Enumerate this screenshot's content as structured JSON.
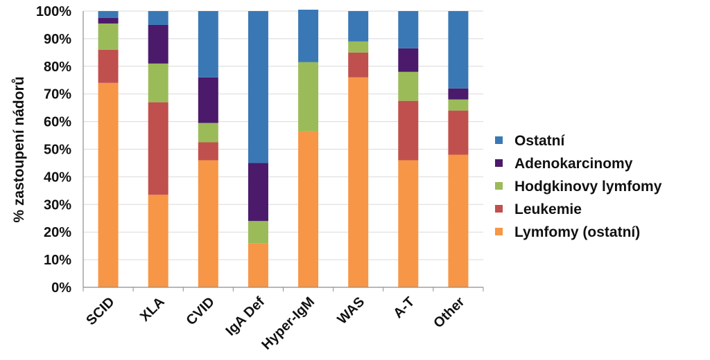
{
  "chart_data": {
    "type": "bar",
    "stacked": true,
    "ylabel": "% zastoupení nádorů",
    "xlabel": "",
    "ylim": [
      0,
      100
    ],
    "yticks": [
      "0%",
      "10%",
      "20%",
      "30%",
      "40%",
      "50%",
      "60%",
      "70%",
      "80%",
      "90%",
      "100%"
    ],
    "grid": true,
    "legend_position": "right",
    "categories": [
      "SCID",
      "XLA",
      "CVID",
      "IgA Def",
      "Hyper-IgM",
      "WAS",
      "A-T",
      "Other"
    ],
    "series": [
      {
        "name": "Lymfomy (ostatní)",
        "color": "#f79646",
        "values": [
          74,
          33.5,
          46,
          16,
          56.5,
          76,
          46,
          48
        ]
      },
      {
        "name": "Leukemie",
        "color": "#c0504d",
        "values": [
          12,
          33.5,
          6.5,
          0,
          0,
          9,
          21.5,
          16
        ]
      },
      {
        "name": "Hodgkinovy lymfomy",
        "color": "#9bbb59",
        "values": [
          9.5,
          14,
          7,
          8,
          25,
          4,
          10.5,
          4
        ]
      },
      {
        "name": "Adenokarcinomy",
        "color": "#4b1a6b",
        "values": [
          2,
          14,
          16.5,
          21,
          0,
          0,
          8.5,
          4
        ]
      },
      {
        "name": "Ostatní",
        "color": "#3a78b5",
        "values": [
          2.5,
          5,
          24,
          55,
          19,
          11,
          13.5,
          28
        ]
      }
    ],
    "legend_order": [
      "Ostatní",
      "Adenokarcinomy",
      "Hodgkinovy lymfomy",
      "Leukemie",
      "Lymfomy (ostatní)"
    ]
  }
}
